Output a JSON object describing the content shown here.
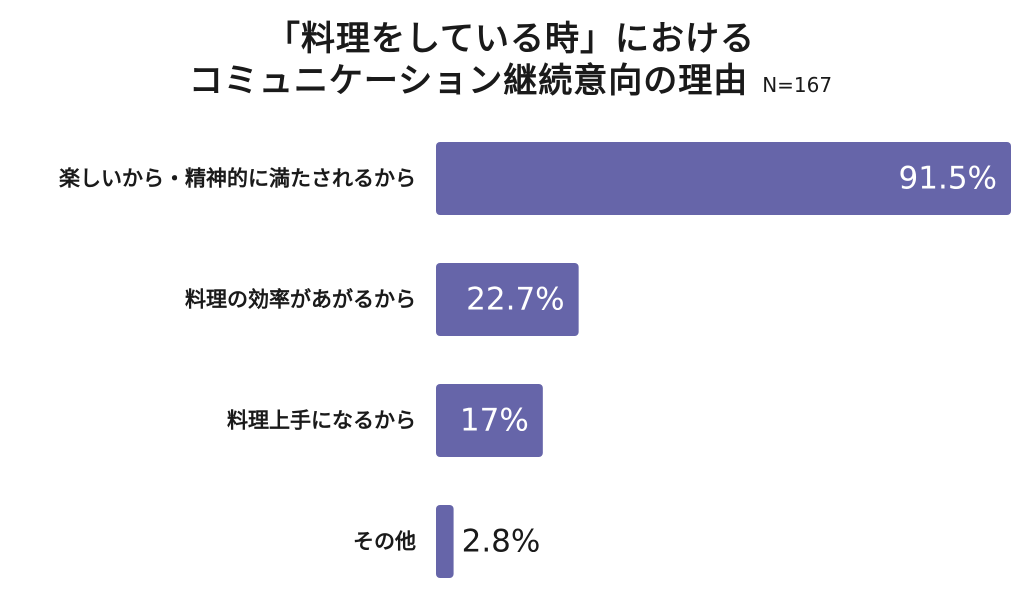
{
  "chart_data": {
    "type": "bar",
    "orientation": "horizontal",
    "title": [
      "「料理をしている時」における",
      "コミュニケーション継続意向の理由"
    ],
    "sample_size": "N=167",
    "categories": [
      "楽しいから・精神的に満たされるから",
      "料理の効率があがるから",
      "料理上手になるから",
      "その他"
    ],
    "values": [
      91.5,
      22.7,
      17,
      2.8
    ],
    "value_labels": [
      "91.5%",
      "22.7%",
      "17%",
      "2.8%"
    ],
    "xlim": [
      0,
      91.5
    ],
    "bar_color": "#6665a9",
    "grid": false
  }
}
